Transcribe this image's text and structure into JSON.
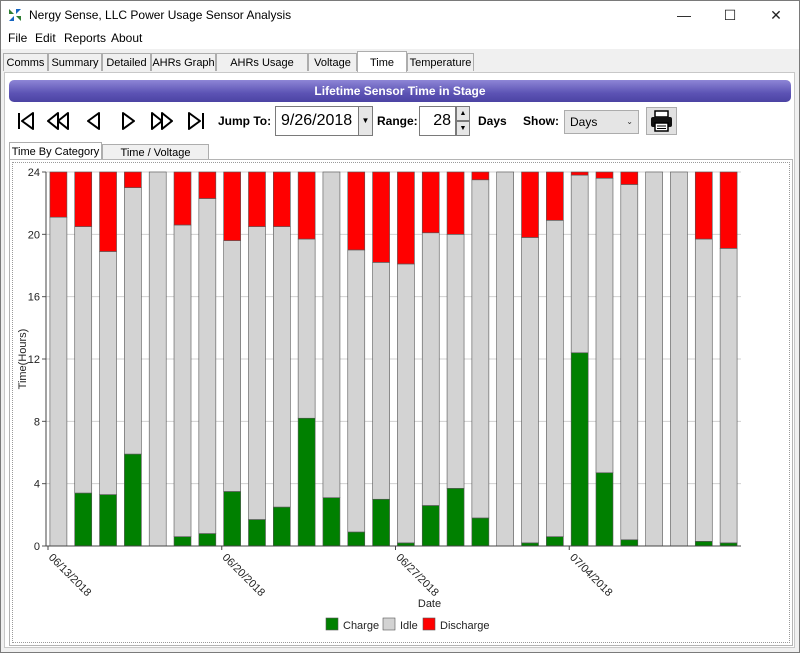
{
  "window": {
    "title": "Nergy Sense, LLC Power Usage Sensor Analysis",
    "minimize_icon": "minimize-icon",
    "maximize_icon": "maximize-icon",
    "close_icon": "close-icon"
  },
  "menu": [
    "File",
    "Edit",
    "Reports",
    "About"
  ],
  "tabs": [
    {
      "label": "Comms",
      "active": false
    },
    {
      "label": "Summary",
      "active": false
    },
    {
      "label": "Detailed",
      "active": false
    },
    {
      "label": "AHRs Graph",
      "active": false
    },
    {
      "label": "AHRs Usage Ratio",
      "active": false
    },
    {
      "label": "Voltage",
      "active": false
    },
    {
      "label": "Time",
      "active": true
    },
    {
      "label": "Temperature",
      "active": false
    }
  ],
  "header": {
    "title": "Lifetime Sensor Time in Stage"
  },
  "controls": {
    "jump_label": "Jump To:",
    "date_value": "9/26/2018",
    "range_label": "Range:",
    "range_value": "28",
    "days_label": "Days",
    "show_label": "Show:",
    "show_value": "Days"
  },
  "subtabs": [
    {
      "label": "Time By Category",
      "active": true
    },
    {
      "label": "Time / Voltage Range",
      "active": false
    }
  ],
  "colors": {
    "charge": "#008000",
    "idle": "#d3d3d3",
    "discharge": "#ff0000",
    "header_bar": "#5c53b4"
  },
  "chart_data": {
    "type": "bar",
    "stacked": true,
    "xlabel": "Date",
    "ylabel": "Time(Hours)",
    "ylim": [
      0,
      24
    ],
    "yticks": [
      0,
      4,
      8,
      12,
      16,
      20,
      24
    ],
    "date_ticks": [
      {
        "index": 0,
        "label": "06/13/2018"
      },
      {
        "index": 7,
        "label": "06/20/2018"
      },
      {
        "index": 14,
        "label": "06/27/2018"
      },
      {
        "index": 21,
        "label": "07/04/2018"
      }
    ],
    "grid": true,
    "legend_position": "bottom",
    "series": [
      {
        "name": "Charge",
        "color": "#008000",
        "values": [
          0,
          3.4,
          3.3,
          5.9,
          0,
          0.6,
          0.8,
          3.5,
          1.7,
          2.5,
          8.2,
          3.1,
          0.9,
          3.0,
          0.2,
          2.6,
          3.7,
          1.8,
          0,
          0.2,
          0.6,
          12.4,
          4.7,
          0.4,
          0,
          0,
          0.3,
          0.2
        ]
      },
      {
        "name": "Idle",
        "color": "#d3d3d3",
        "values": [
          21.1,
          17.1,
          15.6,
          17.1,
          24,
          20.0,
          21.5,
          16.1,
          18.8,
          18.0,
          11.5,
          20.9,
          18.1,
          15.2,
          17.9,
          17.5,
          16.3,
          21.7,
          24,
          19.6,
          20.3,
          11.4,
          18.9,
          22.8,
          24,
          24,
          19.4,
          18.9
        ]
      },
      {
        "name": "Discharge",
        "color": "#ff0000",
        "values": [
          2.9,
          3.5,
          5.1,
          1.0,
          0,
          3.4,
          1.7,
          4.4,
          3.5,
          3.5,
          4.3,
          0,
          5.0,
          5.8,
          5.9,
          3.9,
          4.0,
          0.5,
          0,
          4.2,
          3.1,
          0.2,
          0.4,
          0.8,
          0,
          0,
          4.3,
          4.9
        ]
      }
    ]
  }
}
